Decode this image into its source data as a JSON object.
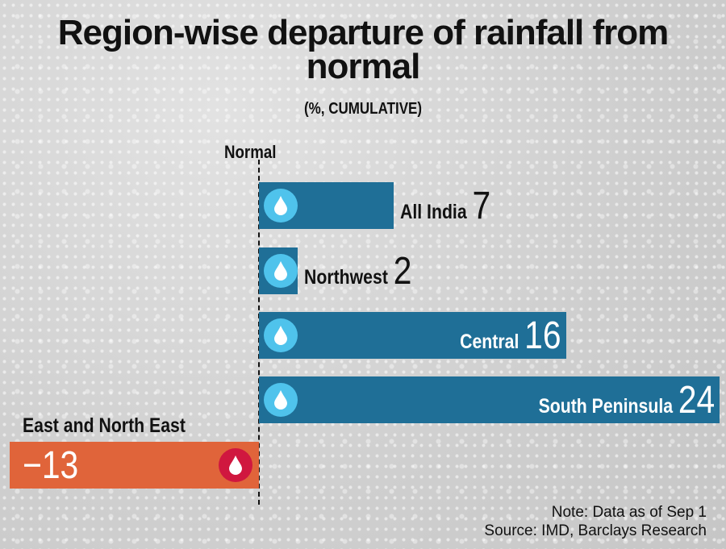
{
  "title": "Region-wise departure of rainfall from normal",
  "subtitle": "(%, CUMULATIVE)",
  "note": "Note: Data as of Sep 1",
  "source": "Source: IMD, Barclays Research",
  "colors": {
    "positive": "#1f6f97",
    "positive_icon": "#4fc3ec",
    "negative": "#e0643a",
    "negative_icon": "#d0173f"
  },
  "chart_data": {
    "type": "bar",
    "orientation": "horizontal",
    "title": "Region-wise departure of rainfall from normal",
    "subtitle": "(%, CUMULATIVE)",
    "baseline_label": "Normal",
    "categories": [
      "All India",
      "Northwest",
      "Central",
      "South Peninsula",
      "East and North East"
    ],
    "values": [
      7,
      2,
      16,
      24,
      -13
    ],
    "value_labels": [
      "7",
      "2",
      "16",
      "24",
      "-13"
    ],
    "xlim": [
      -13,
      24
    ],
    "grid": false
  }
}
